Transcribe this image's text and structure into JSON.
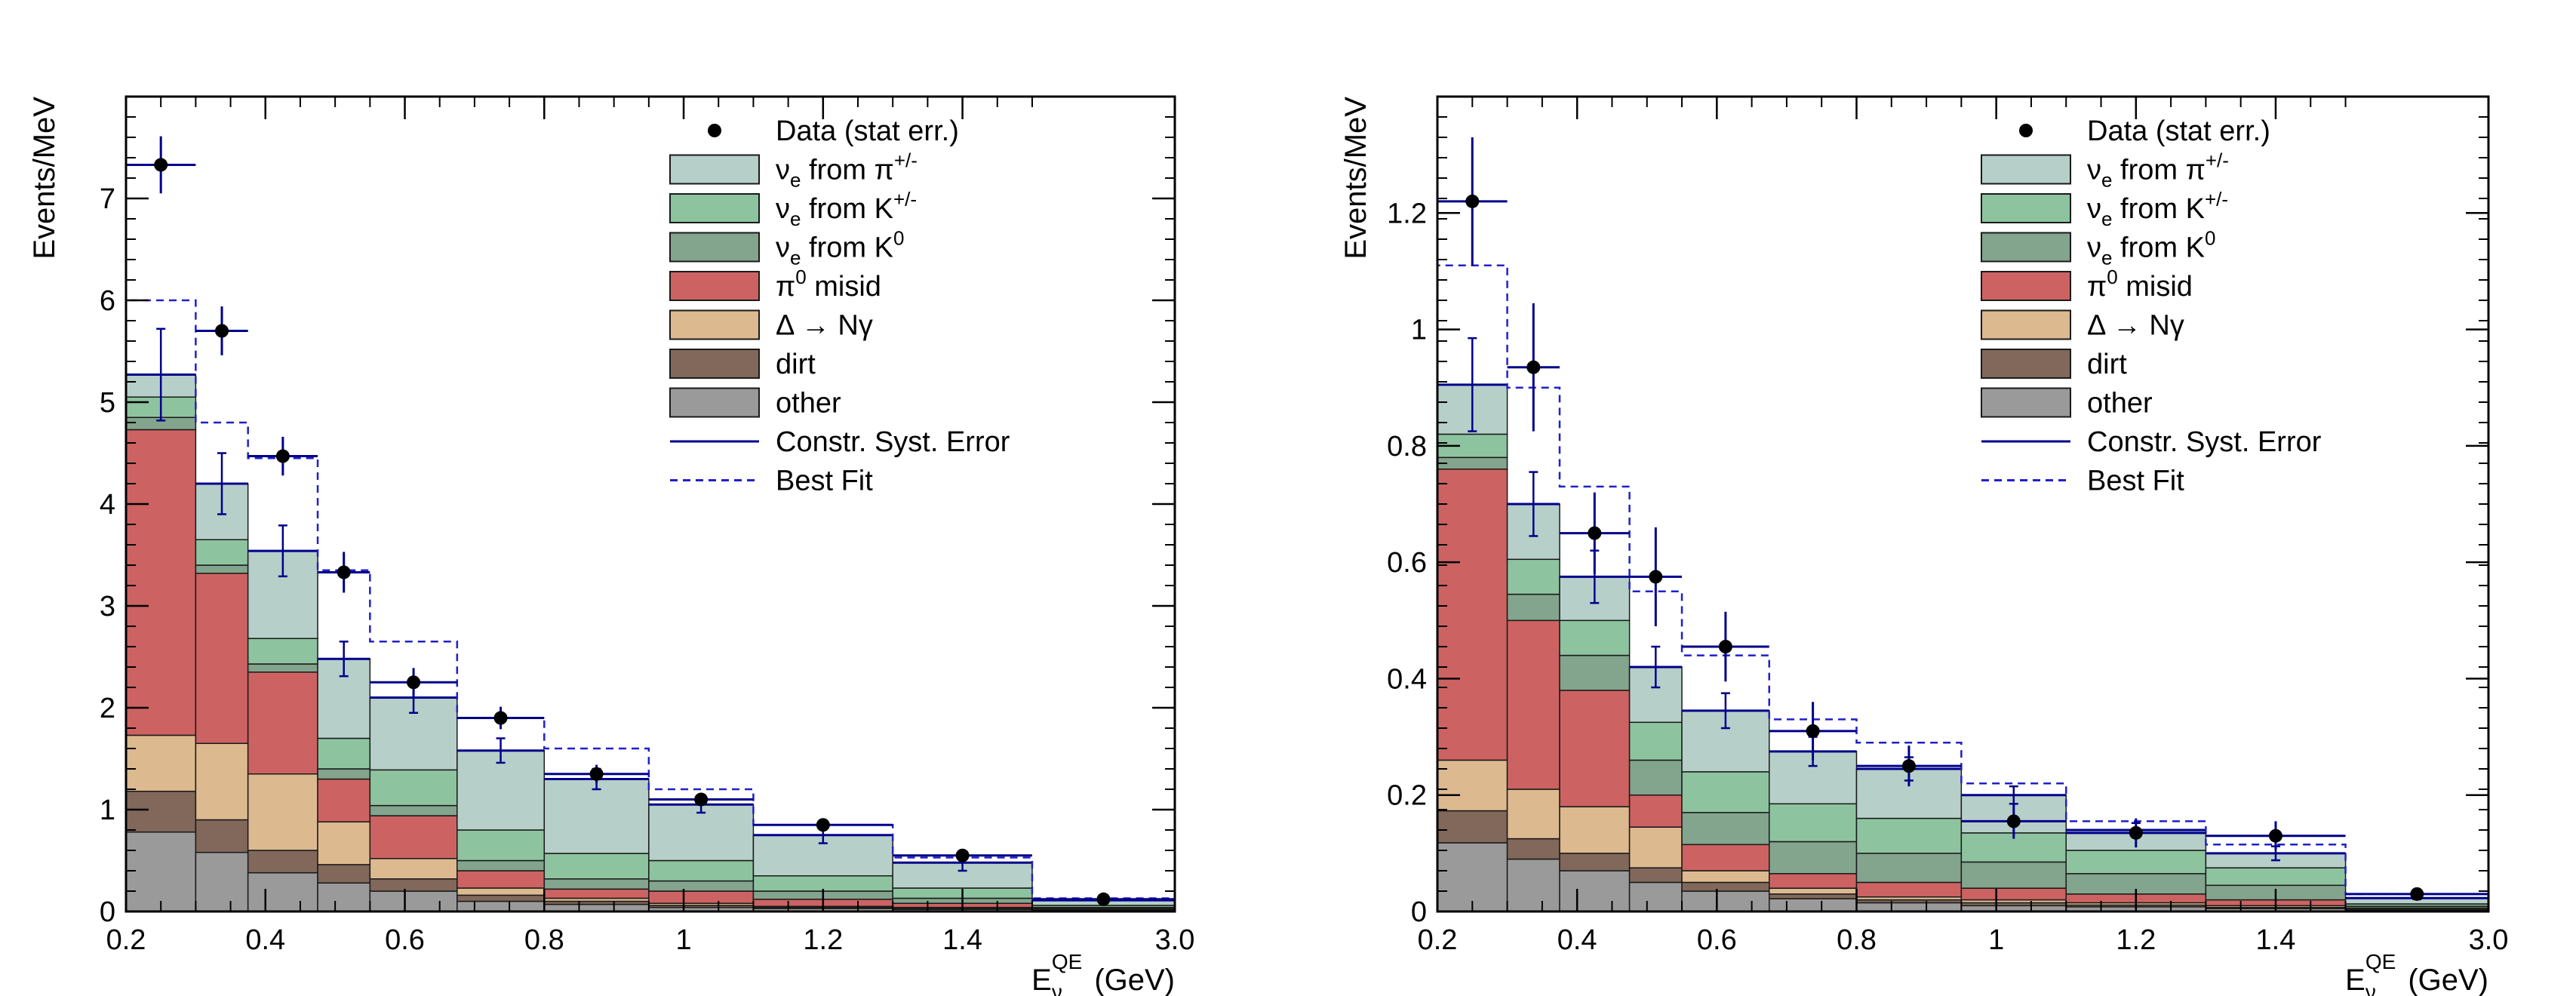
{
  "palette": {
    "pi": "#b7cfc9",
    "kpm": "#8dc49f",
    "k0": "#83a48d",
    "pi0": "#cc6362",
    "delta": "#dcb98f",
    "dirt": "#81685b",
    "other": "#9a9a9a",
    "syst": "#00008b",
    "bestfit": "#2020c8",
    "data": "#000000"
  },
  "chart_data": [
    {
      "type": "bar",
      "stacked": true,
      "xlabel": "E",
      "xlabel_sub": "ν",
      "xlabel_sup": "QE",
      "xlabel_unit": "(GeV)",
      "ylabel": "Events/MeV",
      "xlim": [
        0.2,
        3.0
      ],
      "ylim": [
        0,
        8.0
      ],
      "xticks": [
        "0.2",
        "0.4",
        "0.6",
        "0.8",
        "1",
        "1.2",
        "1.4",
        "1.6",
        "1.8",
        "2.0",
        "3.0"
      ],
      "yticks": [
        0,
        1,
        2,
        3,
        4,
        5,
        6,
        7
      ],
      "ytick_labels": [
        "0",
        "1",
        "2",
        "3",
        "4",
        "5",
        "6",
        "7"
      ],
      "bins": [
        0.2,
        0.3,
        0.375,
        0.475,
        0.55,
        0.675,
        0.8,
        0.95,
        1.1,
        1.3,
        1.5,
        3.0
      ],
      "stack": [
        {
          "name": "other",
          "values": [
            0.78,
            0.58,
            0.38,
            0.28,
            0.2,
            0.1,
            0.07,
            0.04,
            0.03,
            0.02,
            0.01
          ]
        },
        {
          "name": "dirt",
          "values": [
            0.4,
            0.32,
            0.22,
            0.18,
            0.12,
            0.06,
            0.03,
            0.02,
            0.01,
            0.01,
            0.005
          ]
        },
        {
          "name": "Δ → Nγ",
          "values": [
            0.55,
            0.75,
            0.75,
            0.42,
            0.2,
            0.07,
            0.03,
            0.02,
            0.01,
            0.01,
            0.005
          ]
        },
        {
          "name": "π0 misid",
          "values": [
            3.0,
            1.67,
            1.0,
            0.42,
            0.42,
            0.17,
            0.09,
            0.12,
            0.07,
            0.04,
            0.01
          ]
        },
        {
          "name": "νe from K0",
          "values": [
            0.12,
            0.08,
            0.08,
            0.1,
            0.1,
            0.1,
            0.1,
            0.1,
            0.08,
            0.05,
            0.01
          ]
        },
        {
          "name": "νe from K+/-",
          "values": [
            0.2,
            0.25,
            0.25,
            0.3,
            0.35,
            0.3,
            0.25,
            0.2,
            0.15,
            0.1,
            0.02
          ]
        },
        {
          "name": "νe from π+/-",
          "values": [
            0.22,
            0.55,
            0.86,
            0.78,
            0.71,
            0.78,
            0.73,
            0.55,
            0.4,
            0.25,
            0.05
          ]
        }
      ],
      "syst_error": [
        0.45,
        0.3,
        0.25,
        0.17,
        0.15,
        0.12,
        0.1,
        0.08,
        0.08,
        0.08,
        0.01
      ],
      "best_fit": [
        6.0,
        4.8,
        4.45,
        3.35,
        2.65,
        1.9,
        1.6,
        1.2,
        0.85,
        0.53,
        0.13
      ],
      "data": {
        "x": [
          0.25,
          0.3375,
          0.425,
          0.5125,
          0.6125,
          0.7375,
          0.875,
          1.025,
          1.2,
          1.4,
          2.25
        ],
        "y": [
          7.33,
          5.7,
          4.47,
          3.33,
          2.25,
          1.9,
          1.35,
          1.1,
          0.85,
          0.55,
          0.12
        ],
        "yerr": [
          0.28,
          0.24,
          0.19,
          0.2,
          0.14,
          0.11,
          0.09,
          0.06,
          0.05,
          0.04,
          0.01
        ]
      },
      "legend_position": "top-right"
    },
    {
      "type": "bar",
      "stacked": true,
      "xlabel": "E",
      "xlabel_sub": "ν",
      "xlabel_sup": "QE",
      "xlabel_unit": "(GeV)",
      "ylabel": "Events/MeV",
      "xlim": [
        0.2,
        3.0
      ],
      "ylim": [
        0,
        1.4
      ],
      "xticks": [
        "0.2",
        "0.4",
        "0.6",
        "0.8",
        "1",
        "1.2",
        "1.4",
        "1.6",
        "1.8",
        "2.0",
        "3.0"
      ],
      "yticks": [
        0,
        0.2,
        0.4,
        0.6,
        0.8,
        1.0,
        1.2
      ],
      "ytick_labels": [
        "0",
        "0.2",
        "0.4",
        "0.6",
        "0.8",
        "1",
        "1.2"
      ],
      "bins": [
        0.2,
        0.3,
        0.375,
        0.475,
        0.55,
        0.675,
        0.8,
        0.95,
        1.1,
        1.3,
        1.5,
        3.0
      ],
      "stack": [
        {
          "name": "other",
          "values": [
            0.118,
            0.09,
            0.07,
            0.05,
            0.035,
            0.022,
            0.015,
            0.01,
            0.008,
            0.005,
            0.002
          ]
        },
        {
          "name": "dirt",
          "values": [
            0.055,
            0.035,
            0.03,
            0.025,
            0.015,
            0.008,
            0.005,
            0.005,
            0.003,
            0.002,
            0.001
          ]
        },
        {
          "name": "Δ → Nγ",
          "values": [
            0.087,
            0.085,
            0.08,
            0.07,
            0.02,
            0.01,
            0.005,
            0.005,
            0.004,
            0.003,
            0.001
          ]
        },
        {
          "name": "π0 misid",
          "values": [
            0.5,
            0.29,
            0.2,
            0.055,
            0.045,
            0.025,
            0.025,
            0.02,
            0.015,
            0.01,
            0.002
          ]
        },
        {
          "name": "νe from K0",
          "values": [
            0.02,
            0.045,
            0.06,
            0.06,
            0.055,
            0.055,
            0.05,
            0.045,
            0.035,
            0.025,
            0.003
          ]
        },
        {
          "name": "νe from K+/-",
          "values": [
            0.04,
            0.06,
            0.06,
            0.065,
            0.07,
            0.065,
            0.06,
            0.05,
            0.04,
            0.03,
            0.004
          ]
        },
        {
          "name": "νe from π+/-",
          "values": [
            0.085,
            0.095,
            0.075,
            0.095,
            0.105,
            0.09,
            0.085,
            0.065,
            0.035,
            0.025,
            0.01
          ]
        }
      ],
      "syst_error": [
        0.08,
        0.055,
        0.045,
        0.035,
        0.03,
        0.025,
        0.02,
        0.015,
        0.012,
        0.012,
        0.002
      ],
      "best_fit": [
        1.11,
        0.9,
        0.73,
        0.55,
        0.44,
        0.33,
        0.29,
        0.22,
        0.155,
        0.115,
        0.03
      ],
      "data": {
        "x": [
          0.25,
          0.3375,
          0.425,
          0.5125,
          0.6125,
          0.7375,
          0.875,
          1.025,
          1.2,
          1.4,
          2.25
        ],
        "y": [
          1.22,
          0.935,
          0.65,
          0.575,
          0.455,
          0.31,
          0.25,
          0.155,
          0.135,
          0.13,
          0.03
        ],
        "yerr": [
          0.11,
          0.11,
          0.07,
          0.085,
          0.06,
          0.05,
          0.035,
          0.03,
          0.025,
          0.025,
          0.005
        ]
      },
      "legend_position": "top-right"
    }
  ],
  "legend": {
    "data": "Data (stat err.)",
    "entries": [
      {
        "key": "pi",
        "prefix": "ν",
        "sub": "e",
        "mid": " from ",
        "sym": "π",
        "sup": "+/-"
      },
      {
        "key": "kpm",
        "prefix": "ν",
        "sub": "e",
        "mid": " from K",
        "sym": "",
        "sup": "+/-"
      },
      {
        "key": "k0",
        "prefix": "ν",
        "sub": "e",
        "mid": " from K",
        "sym": "",
        "sup": "0"
      },
      {
        "key": "pi0",
        "prefix": "π",
        "sub": "",
        "mid": "",
        "sym": "",
        "sup": "0",
        "post": " misid"
      },
      {
        "key": "delta",
        "prefix": "Δ → Nγ",
        "sub": "",
        "mid": "",
        "sym": "",
        "sup": ""
      },
      {
        "key": "dirt",
        "prefix": "dirt",
        "sub": "",
        "mid": "",
        "sym": "",
        "sup": ""
      },
      {
        "key": "other",
        "prefix": "other",
        "sub": "",
        "mid": "",
        "sym": "",
        "sup": ""
      }
    ],
    "syst": "Constr. Syst. Error",
    "bestfit": "Best Fit"
  }
}
